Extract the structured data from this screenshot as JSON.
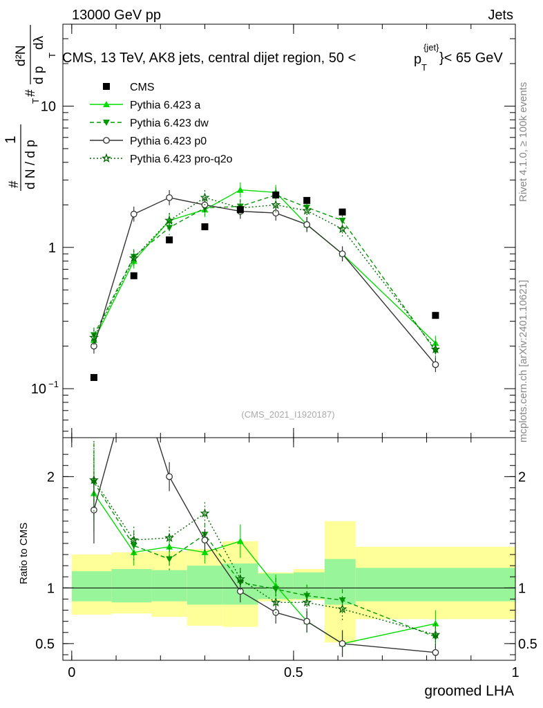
{
  "header": {
    "left": "13000 GeV pp",
    "right": "Jets",
    "title_main": "CMS, 13 TeV, AK8 jets, central dijet region, 50 <",
    "title_p": "p",
    "title_sup": "{jet}",
    "title_sub": "T",
    "title_tail": "}< 65 GeV"
  },
  "side": {
    "right_top": "Rivet 4.1.0, ≥ 100k events",
    "right_bottom": "mcplots.cern.ch [arXiv:2401.10621]"
  },
  "ylabel": {
    "one": "1",
    "hash1": "#",
    "dN_dpT": "d N / d p",
    "sub_T1": "T",
    "hash2": "#",
    "num_d2N": "d²N",
    "den_dpT": "d p",
    "sub_T2": "T",
    "dlambda": "dλ"
  },
  "watermark": "(CMS_2021_I1920187)",
  "ratio_ylabel": "Ratio to CMS",
  "xlabel": "groomed LHA",
  "chart_data": {
    "type": "line",
    "x": [
      0.05,
      0.14,
      0.22,
      0.3,
      0.38,
      0.46,
      0.53,
      0.61,
      0.82
    ],
    "xlim": [
      -0.02,
      1.0
    ],
    "main_ylim": [
      0.045,
      38
    ],
    "ratio_ylim": [
      0.35,
      2.35
    ],
    "x_ticks": [
      {
        "v": 0,
        "label": "0"
      },
      {
        "v": 0.5,
        "label": "0.5"
      },
      {
        "v": 1,
        "label": "1"
      }
    ],
    "main_y_ticks": [
      {
        "v": 0.1,
        "label": "10",
        "sup": "−1"
      },
      {
        "v": 1,
        "label": "1",
        "sup": ""
      },
      {
        "v": 10,
        "label": "10",
        "sup": ""
      }
    ],
    "ratio_y_ticks": [
      {
        "v": 0.5,
        "label": "0.5"
      },
      {
        "v": 1,
        "label": "1"
      },
      {
        "v": 2,
        "label": "2"
      }
    ],
    "data": {
      "name": "CMS",
      "values": [
        0.12,
        0.63,
        1.13,
        1.4,
        1.85,
        2.35,
        2.15,
        1.78,
        0.33
      ]
    },
    "bands": {
      "edges": [
        0.0,
        0.09,
        0.18,
        0.26,
        0.34,
        0.42,
        0.5,
        0.57,
        0.64,
        1.0
      ],
      "inner_lo": [
        0.88,
        0.87,
        0.88,
        0.85,
        0.85,
        0.9,
        0.9,
        0.85,
        0.88
      ],
      "inner_hi": [
        1.15,
        1.17,
        1.16,
        1.2,
        1.22,
        1.13,
        1.14,
        1.26,
        1.18
      ],
      "outer_lo": [
        0.76,
        0.77,
        0.74,
        0.66,
        0.65,
        0.88,
        0.89,
        0.51,
        0.72
      ],
      "outer_hi": [
        1.3,
        1.32,
        1.33,
        1.35,
        1.42,
        1.14,
        1.17,
        1.6,
        1.37
      ]
    },
    "series": [
      {
        "name": "Pythia 6.423 a",
        "color": "#00dd00",
        "dash": "",
        "marker": "triangle-up",
        "values": [
          0.22,
          0.8,
          1.55,
          1.85,
          2.55,
          2.45,
          1.45,
          0.9,
          0.21
        ],
        "ratio": [
          1.85,
          1.32,
          1.37,
          1.32,
          1.42,
          1.02,
          0.7,
          0.5,
          0.68
        ],
        "rerr": [
          0.35,
          0.12,
          0.1,
          0.1,
          0.15,
          0.1,
          0.1,
          0.12,
          0.12
        ]
      },
      {
        "name": "Pythia 6.423 dw",
        "color": "#009900",
        "dash": "6,4",
        "marker": "triangle-down",
        "values": [
          0.24,
          0.86,
          1.38,
          1.9,
          1.95,
          2.35,
          1.92,
          1.55,
          0.185
        ],
        "ratio": [
          1.95,
          1.38,
          1.26,
          1.48,
          1.05,
          0.99,
          0.93,
          0.89,
          0.56
        ],
        "rerr": [
          0.35,
          0.13,
          0.1,
          0.1,
          0.12,
          0.1,
          0.1,
          0.1,
          0.1
        ]
      },
      {
        "name": "Pythia 6.423 p0",
        "color": "#333333",
        "dash": "",
        "marker": "circle-open",
        "values": [
          0.2,
          1.72,
          2.25,
          2.0,
          1.8,
          1.75,
          1.45,
          0.9,
          0.148
        ],
        "ratio": [
          1.7,
          3.0,
          2.0,
          1.43,
          0.97,
          0.78,
          0.7,
          0.5,
          0.42
        ],
        "rerr": [
          0.3,
          0.2,
          0.13,
          0.1,
          0.1,
          0.1,
          0.1,
          0.12,
          0.08
        ]
      },
      {
        "name": "Pythia 6.423 pro-q2o",
        "color": "#006600",
        "dash": "2,3",
        "marker": "star",
        "values": [
          0.23,
          0.84,
          1.55,
          2.25,
          1.9,
          2.0,
          1.82,
          1.35,
          0.19
        ],
        "ratio": [
          1.97,
          1.43,
          1.45,
          1.67,
          1.08,
          0.87,
          0.87,
          0.81,
          0.58
        ],
        "rerr": [
          0.35,
          0.12,
          0.1,
          0.1,
          0.1,
          0.1,
          0.1,
          0.1,
          0.1
        ]
      }
    ]
  }
}
